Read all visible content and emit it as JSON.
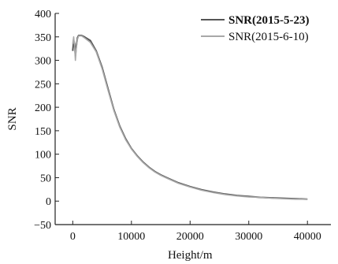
{
  "chart_data": {
    "type": "line",
    "xlabel": "Height/m",
    "ylabel": "SNR",
    "xlim": [
      -3000,
      44000
    ],
    "ylim": [
      -50,
      400
    ],
    "x_ticks": [
      0,
      10000,
      20000,
      30000,
      40000
    ],
    "y_ticks": [
      -50,
      0,
      50,
      100,
      150,
      200,
      250,
      300,
      350,
      400
    ],
    "x_tick_labels": [
      "0",
      "10000",
      "20000",
      "30000",
      "40000"
    ],
    "y_tick_labels": [
      "−50",
      "0",
      "50",
      "100",
      "150",
      "200",
      "250",
      "300",
      "350",
      "400"
    ],
    "grid": false,
    "legend_position": "top-right",
    "series": [
      {
        "name": "SNR(2015-5-23)",
        "color": "#555555",
        "x": [
          0,
          150,
          300,
          450,
          600,
          800,
          1000,
          1500,
          2000,
          3000,
          4000,
          5000,
          6000,
          7000,
          8000,
          9000,
          10000,
          11000,
          12000,
          13000,
          14000,
          15000,
          16000,
          18000,
          20000,
          22000,
          24000,
          26000,
          28000,
          30000,
          32000,
          34000,
          36000,
          38000,
          40000
        ],
        "y": [
          320,
          342,
          335,
          310,
          330,
          348,
          353,
          353,
          350,
          342,
          320,
          285,
          240,
          195,
          160,
          133,
          112,
          96,
          83,
          72,
          63,
          56,
          50,
          39,
          31,
          24,
          19,
          15,
          12,
          10,
          8,
          7,
          6,
          5,
          4
        ]
      },
      {
        "name": "SNR(2015-6-10)",
        "color": "#a8a8a8",
        "x": [
          0,
          150,
          300,
          450,
          600,
          800,
          1000,
          1500,
          2000,
          3000,
          4000,
          5000,
          6000,
          7000,
          8000,
          9000,
          10000,
          11000,
          12000,
          13000,
          14000,
          15000,
          16000,
          18000,
          20000,
          22000,
          24000,
          26000,
          28000,
          30000,
          32000,
          34000,
          36000,
          38000,
          40000
        ],
        "y": [
          335,
          350,
          330,
          300,
          325,
          345,
          352,
          352,
          348,
          338,
          318,
          282,
          237,
          193,
          158,
          131,
          111,
          95,
          82,
          71,
          62,
          55,
          49,
          38,
          30,
          23,
          18,
          14,
          11,
          9,
          8,
          6,
          5,
          4,
          4
        ]
      }
    ]
  }
}
